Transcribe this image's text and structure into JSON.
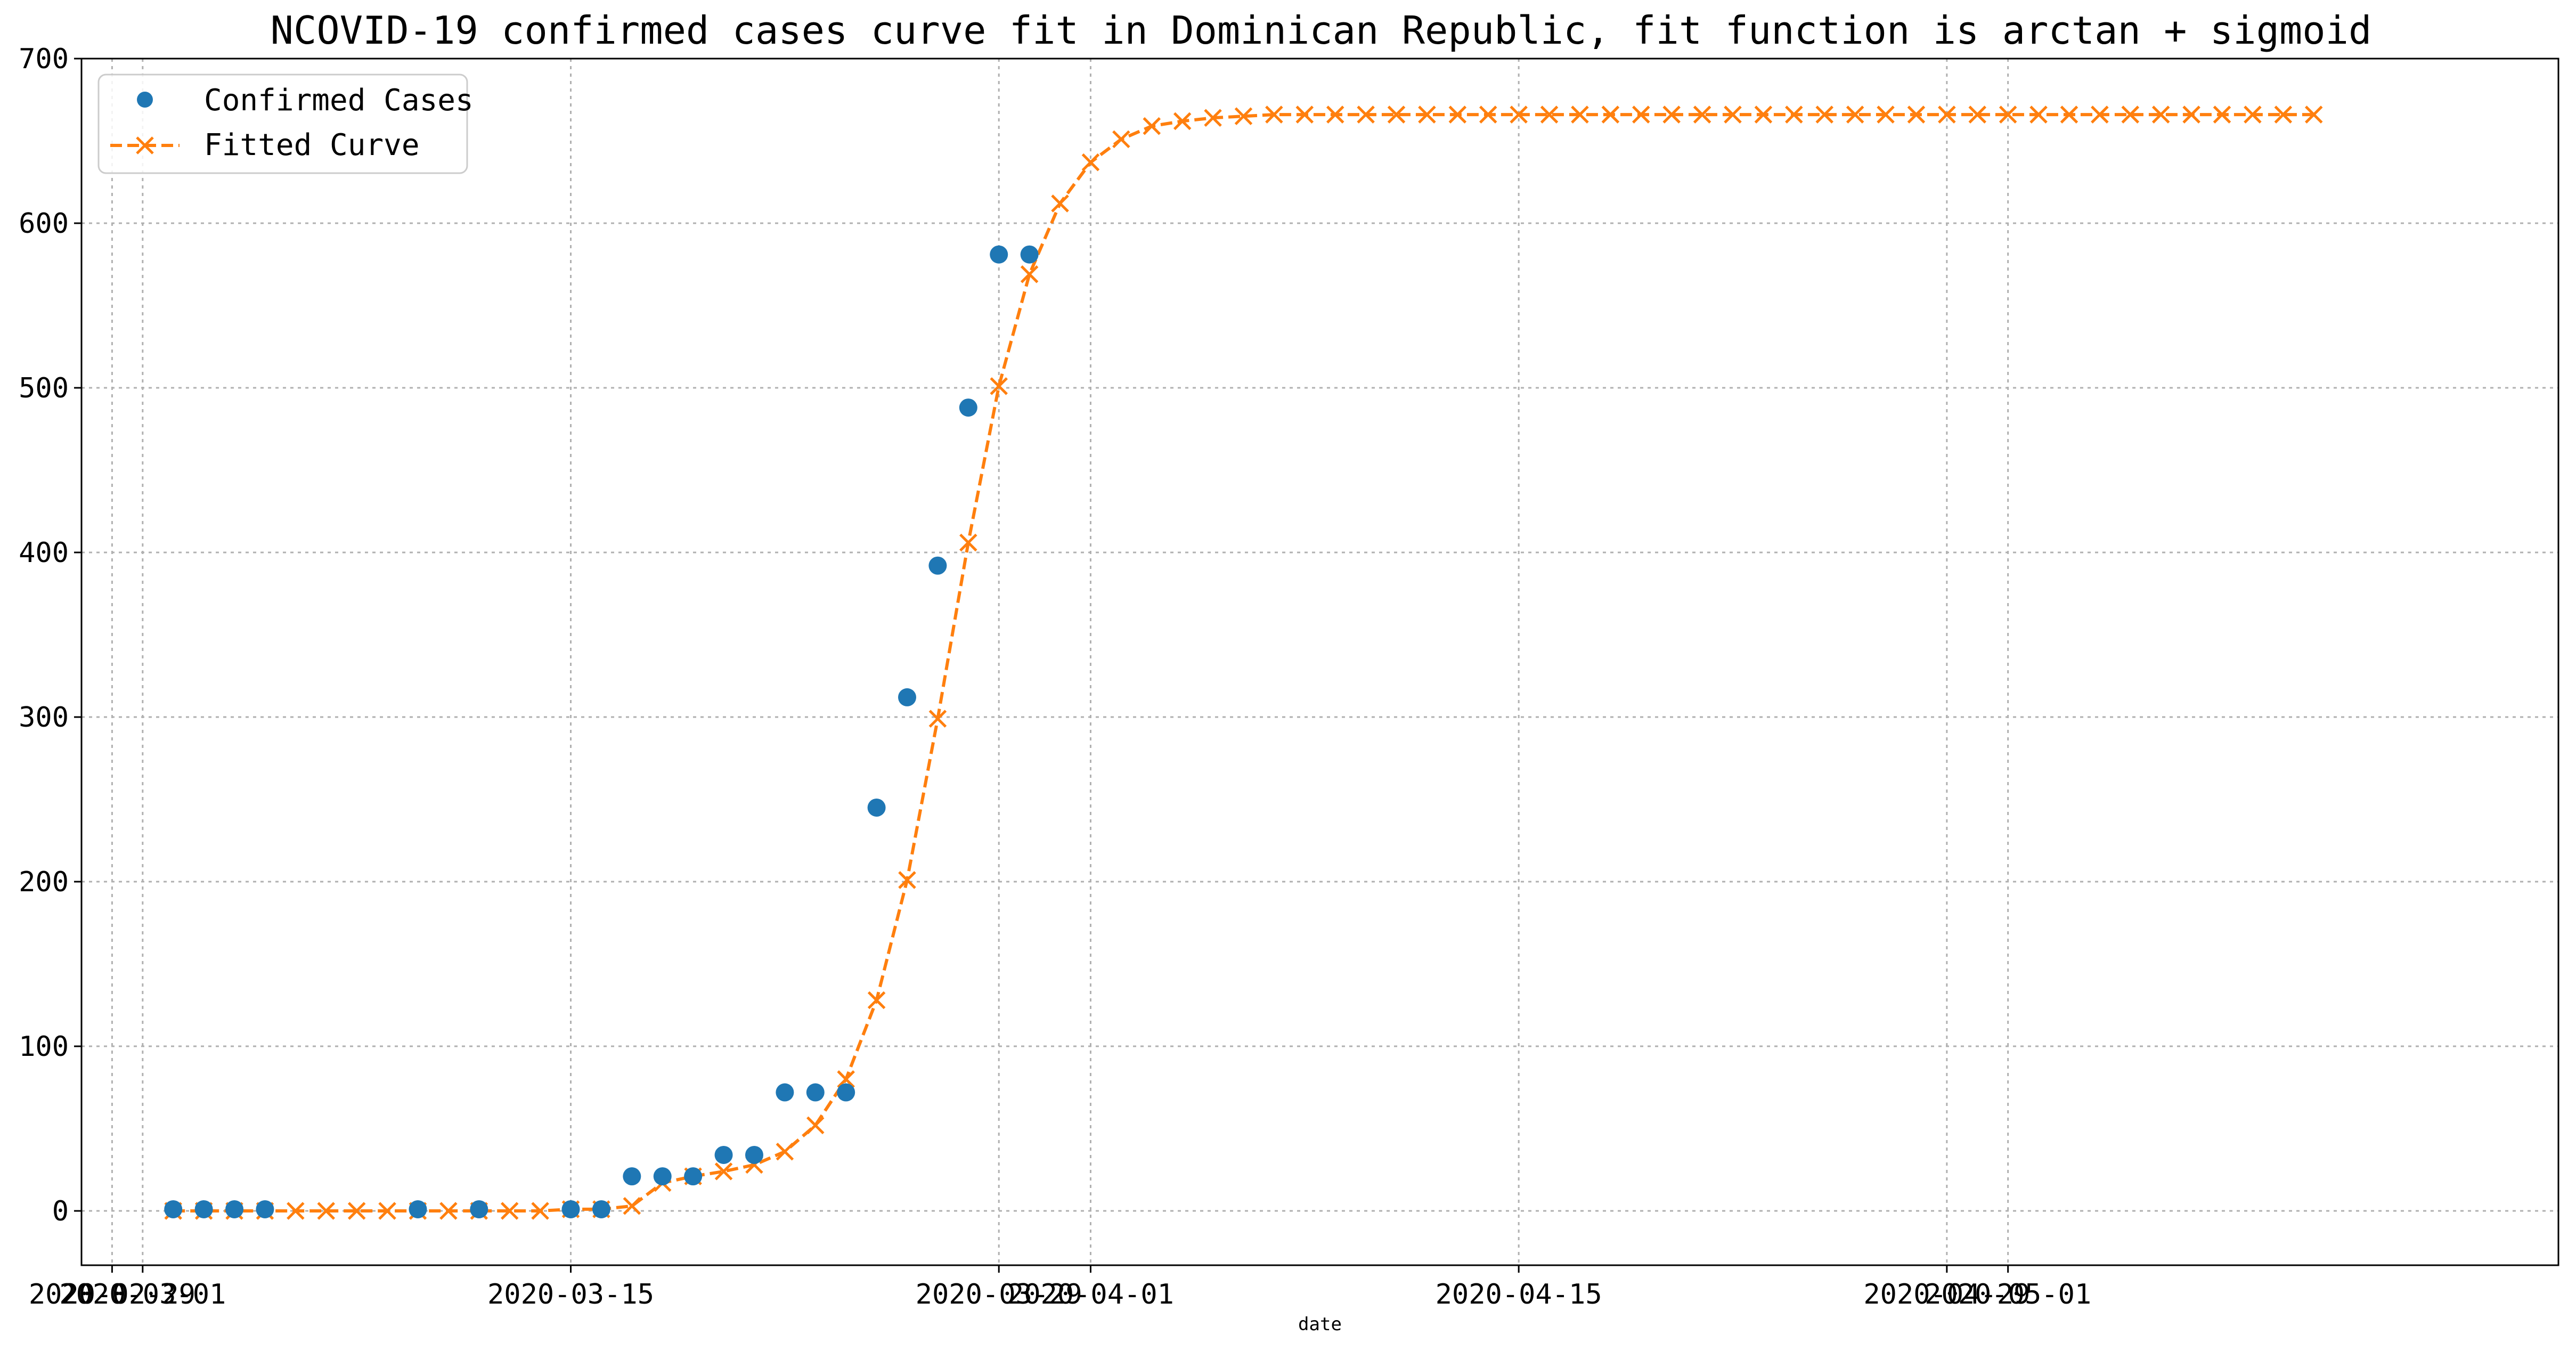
{
  "chart_data": {
    "type": "line",
    "title": "NCOVID-19 confirmed cases curve fit in Dominican Republic, fit function is arctan + sigmoid",
    "xlabel": "date",
    "ylabel": "",
    "xlim": [
      "2020-02-28",
      "2020-05-19"
    ],
    "ylim": [
      -33,
      700
    ],
    "grid": true,
    "legend_position": "top-left",
    "yticks": [
      0,
      100,
      200,
      300,
      400,
      500,
      600,
      700
    ],
    "xticks": [
      {
        "date": "2020-02-29",
        "label": "2020-02-29"
      },
      {
        "date": "2020-03-01",
        "label": "2020-03-01"
      },
      {
        "date": "2020-03-15",
        "label": "2020-03-15"
      },
      {
        "date": "2020-03-29",
        "label": "2020-03-29"
      },
      {
        "date": "2020-04-01",
        "label": "2020-04-01"
      },
      {
        "date": "2020-04-15",
        "label": "2020-04-15"
      },
      {
        "date": "2020-04-29",
        "label": "2020-04-29"
      },
      {
        "date": "2020-05-01",
        "label": "2020-05-01"
      }
    ],
    "series": [
      {
        "name": "Confirmed Cases",
        "style": "markers",
        "color": "#1f77b4",
        "points": [
          {
            "x": "2020-03-02",
            "y": 1
          },
          {
            "x": "2020-03-03",
            "y": 1
          },
          {
            "x": "2020-03-04",
            "y": 1
          },
          {
            "x": "2020-03-05",
            "y": 1
          },
          {
            "x": "2020-03-10",
            "y": 1
          },
          {
            "x": "2020-03-12",
            "y": 1
          },
          {
            "x": "2020-03-15",
            "y": 1
          },
          {
            "x": "2020-03-16",
            "y": 1
          },
          {
            "x": "2020-03-17",
            "y": 21
          },
          {
            "x": "2020-03-18",
            "y": 21
          },
          {
            "x": "2020-03-19",
            "y": 21
          },
          {
            "x": "2020-03-20",
            "y": 34
          },
          {
            "x": "2020-03-21",
            "y": 34
          },
          {
            "x": "2020-03-22",
            "y": 72
          },
          {
            "x": "2020-03-23",
            "y": 72
          },
          {
            "x": "2020-03-24",
            "y": 72
          },
          {
            "x": "2020-03-25",
            "y": 245
          },
          {
            "x": "2020-03-26",
            "y": 312
          },
          {
            "x": "2020-03-27",
            "y": 392
          },
          {
            "x": "2020-03-28",
            "y": 488
          },
          {
            "x": "2020-03-29",
            "y": 581
          },
          {
            "x": "2020-03-30",
            "y": 581
          }
        ]
      },
      {
        "name": "Fitted Curve",
        "style": "dashed-line-x-markers",
        "color": "#ff7f0e",
        "x_start": "2020-03-02",
        "y": [
          0,
          0,
          0,
          0,
          0,
          0,
          0,
          0,
          0,
          0,
          0,
          0,
          0,
          1,
          1,
          3,
          17,
          21,
          24,
          28,
          36,
          52,
          80,
          128,
          201,
          299,
          406,
          501,
          569,
          612,
          637,
          651,
          659,
          662,
          664,
          665,
          666,
          666,
          666,
          666,
          666,
          666,
          666,
          666,
          666,
          666,
          666,
          666,
          666,
          666,
          666,
          666,
          666,
          666,
          666,
          666,
          666,
          666,
          666,
          666,
          666,
          666,
          666,
          666,
          666,
          666,
          666,
          666,
          666,
          666,
          666
        ]
      }
    ]
  }
}
